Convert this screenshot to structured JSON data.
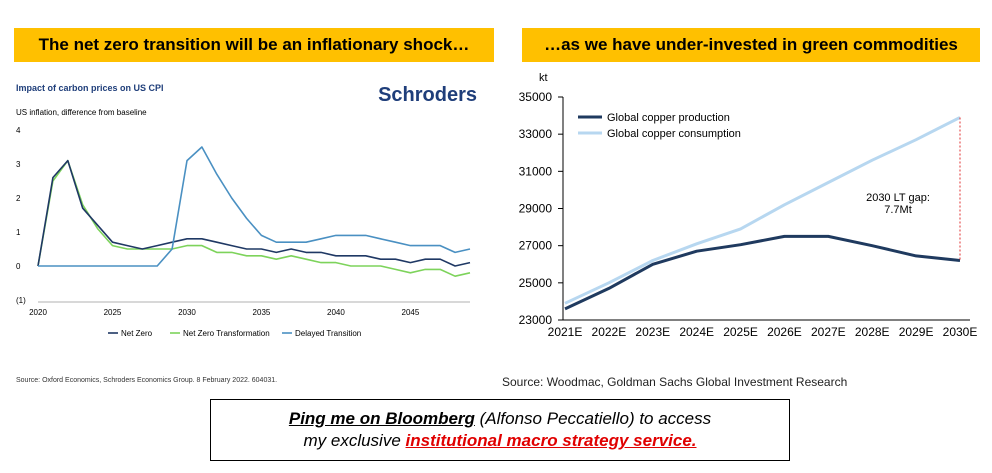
{
  "banners": {
    "left": "The net zero transition will be an inflationary shock…",
    "right": "…as we have under-invested in green commodities"
  },
  "left_logo": "Schroders",
  "left_source": "Source: Oxford Economics, Schroders Economics Group. 8 February 2022. 604031.",
  "right_source": "Source: Woodmac, Goldman Sachs Global Investment Research",
  "cta": {
    "line1_bold": "Ping me on Bloomberg",
    "line1_rest": " (Alfonso Peccatiello) to access",
    "line2_pre": "my exclusive ",
    "line2_link": "institutional macro strategy service."
  },
  "colors": {
    "banner": "#ffc000",
    "net_zero": "#1f3864",
    "nz_transformation": "#7dd35b",
    "delayed_transition": "#4a90c2",
    "copper_production": "#1f3a5f",
    "copper_consumption": "#b7d7f0",
    "gap_line": "#e03030",
    "cta_link": "#e00000",
    "logo": "#1f3e7a"
  },
  "chart_data": [
    {
      "type": "line",
      "title": "Impact of carbon prices on US CPI",
      "subtitle": "US inflation, difference from baseline",
      "ylim": [
        -1,
        4
      ],
      "yticks": [
        "4",
        "3",
        "2",
        "1",
        "0",
        "(1)"
      ],
      "xlim": [
        2020,
        2049
      ],
      "xticks": [
        "2020",
        "2025",
        "2030",
        "2035",
        "2040",
        "2045"
      ],
      "legend_position": "bottom",
      "x": [
        2020,
        2021,
        2022,
        2023,
        2024,
        2025,
        2026,
        2027,
        2028,
        2029,
        2030,
        2031,
        2032,
        2033,
        2034,
        2035,
        2036,
        2037,
        2038,
        2039,
        2040,
        2041,
        2042,
        2043,
        2044,
        2045,
        2046,
        2047,
        2048,
        2049
      ],
      "series": [
        {
          "name": "Net Zero",
          "values": [
            0,
            2.6,
            3.1,
            1.7,
            1.2,
            0.7,
            0.6,
            0.5,
            0.6,
            0.7,
            0.8,
            0.8,
            0.7,
            0.6,
            0.5,
            0.5,
            0.4,
            0.5,
            0.4,
            0.4,
            0.3,
            0.3,
            0.3,
            0.2,
            0.2,
            0.1,
            0.2,
            0.2,
            0.0,
            0.1
          ]
        },
        {
          "name": "Net Zero Transformation",
          "values": [
            0,
            2.5,
            3.1,
            1.8,
            1.1,
            0.6,
            0.5,
            0.5,
            0.5,
            0.5,
            0.6,
            0.6,
            0.4,
            0.4,
            0.3,
            0.3,
            0.2,
            0.3,
            0.2,
            0.1,
            0.1,
            0.0,
            0.0,
            0.0,
            -0.1,
            -0.2,
            -0.1,
            -0.1,
            -0.3,
            -0.2
          ]
        },
        {
          "name": "Delayed Transition",
          "values": [
            0,
            0,
            0,
            0,
            0,
            0,
            0,
            0,
            0,
            0.5,
            3.1,
            3.5,
            2.7,
            2.0,
            1.4,
            0.9,
            0.7,
            0.7,
            0.7,
            0.8,
            0.9,
            0.9,
            0.9,
            0.8,
            0.7,
            0.6,
            0.6,
            0.6,
            0.4,
            0.5
          ]
        }
      ]
    },
    {
      "type": "line",
      "ylabel": "kt",
      "ylim": [
        23000,
        35000
      ],
      "yticks": [
        "35000",
        "33000",
        "31000",
        "29000",
        "27000",
        "25000",
        "23000"
      ],
      "categories": [
        "2021E",
        "2022E",
        "2023E",
        "2024E",
        "2025E",
        "2026E",
        "2027E",
        "2028E",
        "2029E",
        "2030E"
      ],
      "legend_position": "top-left",
      "series": [
        {
          "name": "Global copper production",
          "values": [
            23600,
            24700,
            26000,
            26700,
            27050,
            27500,
            27500,
            27000,
            26450,
            26200
          ]
        },
        {
          "name": "Global copper consumption",
          "values": [
            23900,
            25000,
            26200,
            27100,
            27900,
            29200,
            30400,
            31600,
            32700,
            33900
          ]
        }
      ],
      "annotation": {
        "line1": "2030 LT gap:",
        "line2": "7.7Mt"
      }
    }
  ]
}
